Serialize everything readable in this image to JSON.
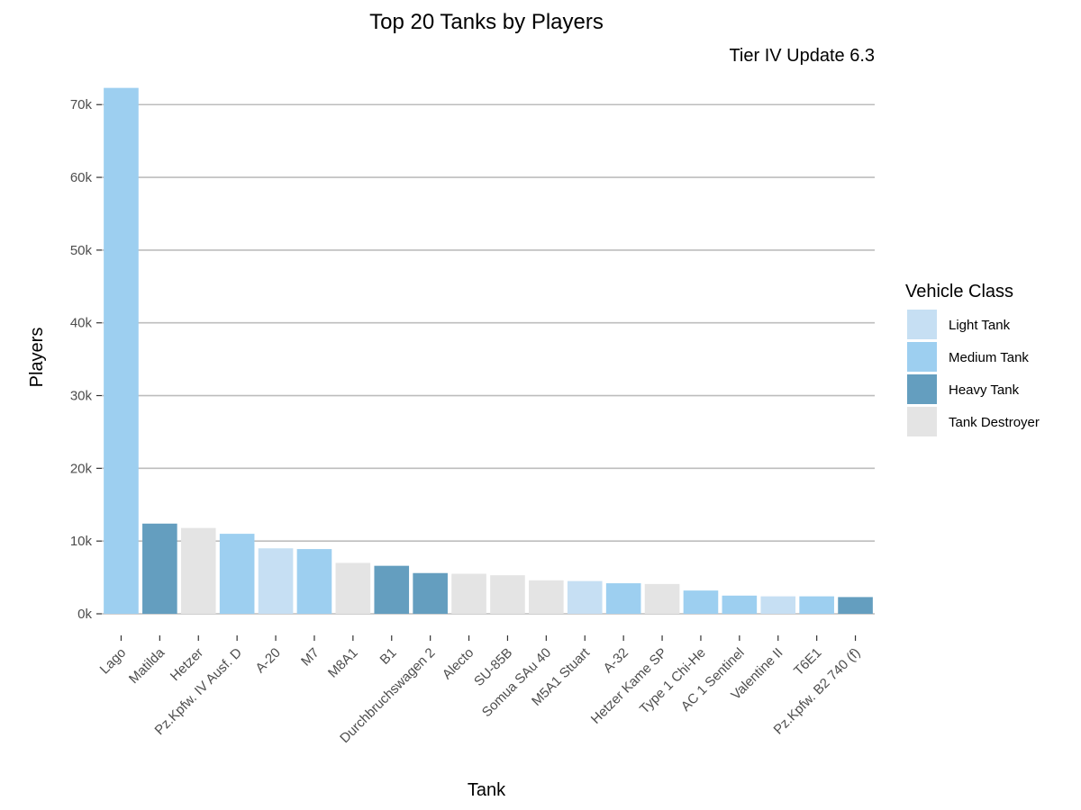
{
  "chart_data": {
    "type": "bar",
    "title": "Top 20 Tanks by Players",
    "subtitle": "Tier IV Update 6.3",
    "xlabel": "Tank",
    "ylabel": "Players",
    "ylim": [
      0,
      73000
    ],
    "yticks": [
      0,
      10000,
      20000,
      30000,
      40000,
      50000,
      60000,
      70000
    ],
    "ytick_labels": [
      "0k",
      "10k",
      "20k",
      "30k",
      "40k",
      "50k",
      "60k",
      "70k"
    ],
    "grid": "horizontal major lines",
    "legend_position": "right",
    "legend_title": "Vehicle Class",
    "classes": [
      {
        "name": "Light Tank",
        "color": "#c6dff3"
      },
      {
        "name": "Medium Tank",
        "color": "#9dcff0"
      },
      {
        "name": "Heavy Tank",
        "color": "#649ebf"
      },
      {
        "name": "Tank Destroyer",
        "color": "#e4e4e4"
      }
    ],
    "categories": [
      "Lago",
      "Matilda",
      "Hetzer",
      "Pz.Kpfw. IV Ausf. D",
      "A-20",
      "M7",
      "M8A1",
      "B1",
      "Durchbruchswagen 2",
      "Alecto",
      "SU-85B",
      "Somua SAu 40",
      "M5A1 Stuart",
      "A-32",
      "Hetzer Kame SP",
      "Type 1 Chi-He",
      "AC 1 Sentinel",
      "Valentine II",
      "T6E1",
      "Pz.Kpfw. B2 740 (f)"
    ],
    "values": [
      72300,
      12400,
      11800,
      11000,
      9000,
      8900,
      7000,
      6600,
      5600,
      5500,
      5300,
      4600,
      4500,
      4200,
      4100,
      3200,
      2500,
      2400,
      2400,
      2300
    ],
    "vehicle_class": [
      "Medium Tank",
      "Heavy Tank",
      "Tank Destroyer",
      "Medium Tank",
      "Light Tank",
      "Medium Tank",
      "Tank Destroyer",
      "Heavy Tank",
      "Heavy Tank",
      "Tank Destroyer",
      "Tank Destroyer",
      "Tank Destroyer",
      "Light Tank",
      "Medium Tank",
      "Tank Destroyer",
      "Medium Tank",
      "Medium Tank",
      "Light Tank",
      "Medium Tank",
      "Heavy Tank"
    ]
  }
}
